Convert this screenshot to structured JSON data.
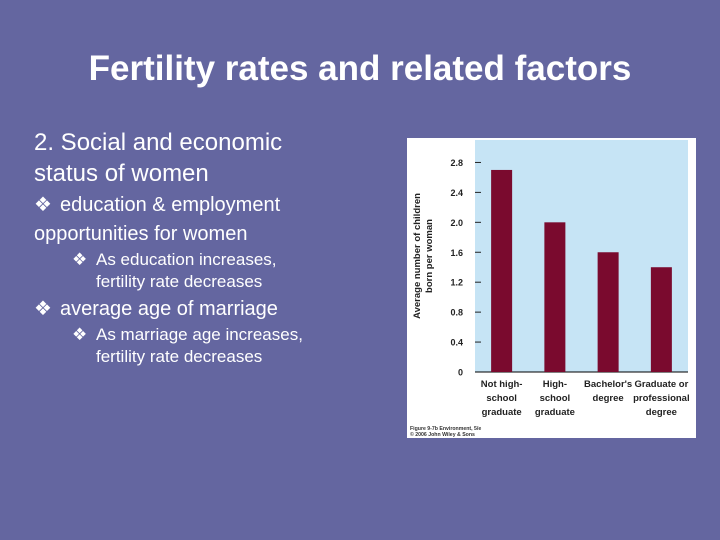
{
  "slide": {
    "title": "Fertility rates and related factors",
    "heading_line1": "2. Social and economic",
    "heading_line2": "status of women",
    "bullet1_line1": "education & employment",
    "bullet1_line2": "opportunities for women",
    "sub1_line1": "As education increases,",
    "sub1_line2": "fertility rate decreases",
    "bullet2": "average age of marriage",
    "sub2_line1": "As marriage age increases,",
    "sub2_line2": "fertility rate decreases",
    "bullet_symbol": "❖"
  },
  "colors": {
    "background": "#6466a0",
    "plot_background": "#c6e4f5",
    "bar": "#7a0a2e"
  },
  "chart_data": {
    "type": "bar",
    "categories": [
      [
        "Not high-",
        "school",
        "graduate"
      ],
      [
        "High-",
        "school",
        "graduate"
      ],
      [
        "Bachelor's",
        "degree"
      ],
      [
        "Graduate or",
        "professional",
        "degree"
      ]
    ],
    "values": [
      2.7,
      2.0,
      1.6,
      1.4
    ],
    "ylabel_line1": "Average number of children",
    "ylabel_line2": "born per woman",
    "yticks": [
      "0",
      "0.4",
      "0.8",
      "1.2",
      "1.6",
      "2.0",
      "2.4",
      "2.8"
    ],
    "ylim": [
      0,
      3.1
    ],
    "grid": false,
    "credit_line1": "Figure 9-7b Environment, 5/e",
    "credit_line2": "© 2006 John Wiley & Sons"
  }
}
